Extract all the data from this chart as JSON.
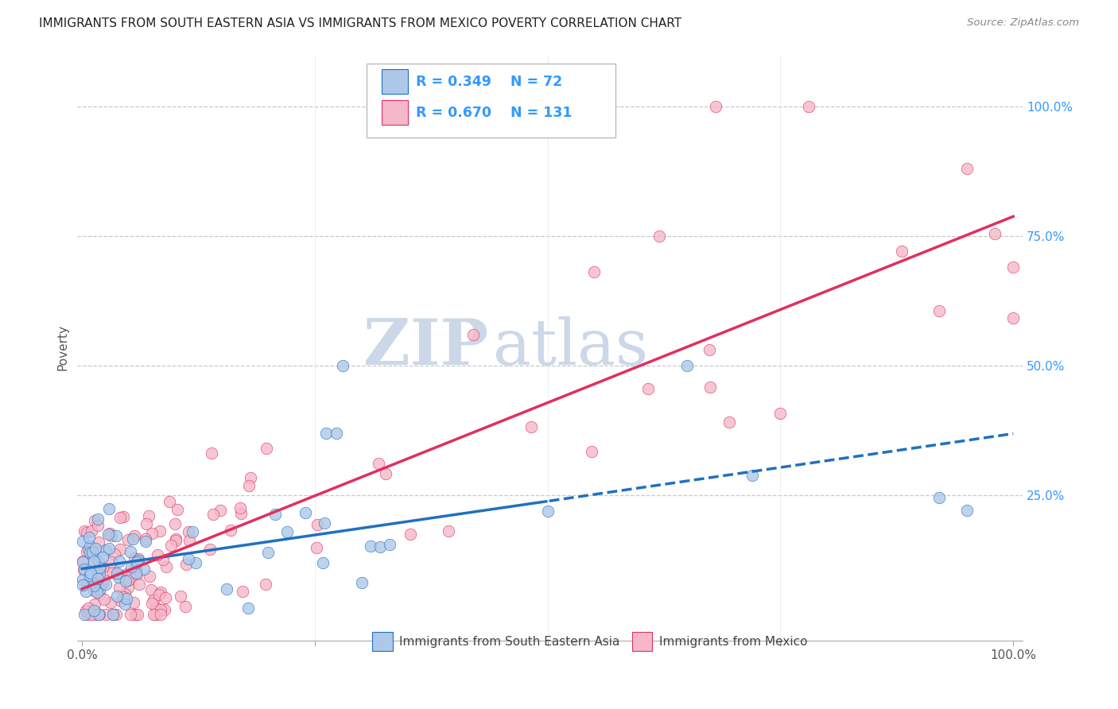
{
  "title": "IMMIGRANTS FROM SOUTH EASTERN ASIA VS IMMIGRANTS FROM MEXICO POVERTY CORRELATION CHART",
  "source": "Source: ZipAtlas.com",
  "ylabel": "Poverty",
  "legend_r1": "R = 0.349",
  "legend_n1": "N = 72",
  "legend_r2": "R = 0.670",
  "legend_n2": "N = 131",
  "series1_label": "Immigrants from South Eastern Asia",
  "series2_label": "Immigrants from Mexico",
  "series1_color": "#adc8e8",
  "series2_color": "#f5b8c8",
  "series1_line_color": "#2070c0",
  "series2_line_color": "#e03060",
  "background_color": "#ffffff",
  "watermark": "ZIPatlas",
  "watermark_color": "#ccd8e8"
}
